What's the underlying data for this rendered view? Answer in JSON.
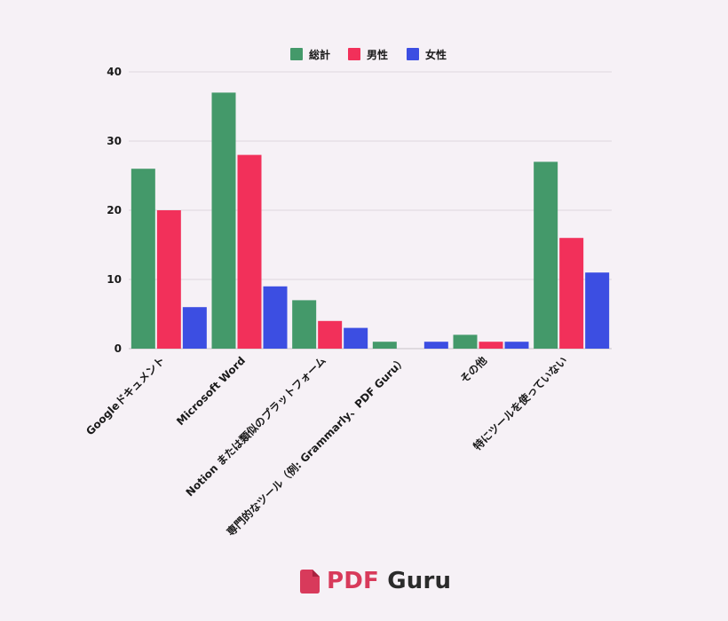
{
  "chart_data": {
    "type": "bar",
    "categories": [
      "Googleドキュメント",
      "Microsoft Word",
      "Notion または類似のプラットフォーム",
      "専門的なツール（例: Grammarly、PDF Guru）",
      "その他",
      "特にツールを使っていない"
    ],
    "series": [
      {
        "name": "総計",
        "color": "#44996a",
        "values": [
          26,
          37,
          7,
          1,
          2,
          27
        ]
      },
      {
        "name": "男性",
        "color": "#f2305a",
        "values": [
          20,
          28,
          4,
          0,
          1,
          16
        ]
      },
      {
        "name": "女性",
        "color": "#3c4ee2",
        "values": [
          6,
          9,
          3,
          1,
          1,
          11
        ]
      }
    ],
    "ylim": [
      0,
      40
    ],
    "yticks": [
      0,
      10,
      20,
      30,
      40
    ],
    "grid": true,
    "legend_position": "top-center"
  },
  "brand": {
    "part1": "PDF",
    "part2": "Guru"
  }
}
